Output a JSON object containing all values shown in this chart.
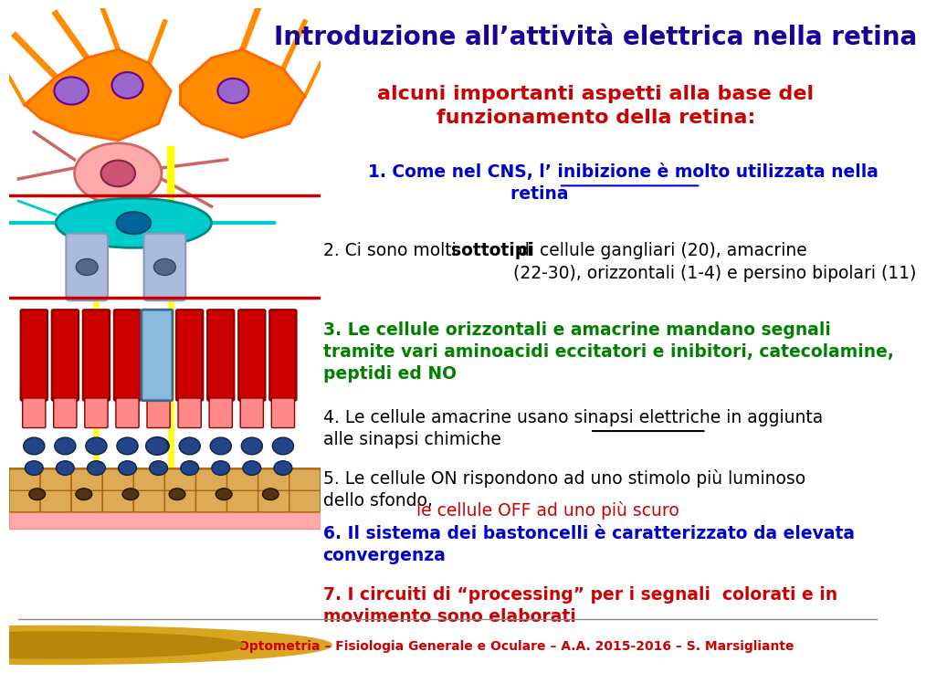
{
  "title": "Introduzione all’attività elettrica nella retina",
  "title_color": "#1a0099",
  "title_fontsize": 20,
  "subtitle": "alcuni importanti aspetti alla base del\nfunzionamento della retina:",
  "subtitle_color": "#cc0000",
  "subtitle_fontsize": 16,
  "background_color": "#ffffff",
  "footer_text": "UniSalento – Ottica e Optometria – Fisiologia Generale e Oculare – A.A. 2015-2016 – S. Marsigliante",
  "footer_color": "#cc0000",
  "footer_fontsize": 10
}
